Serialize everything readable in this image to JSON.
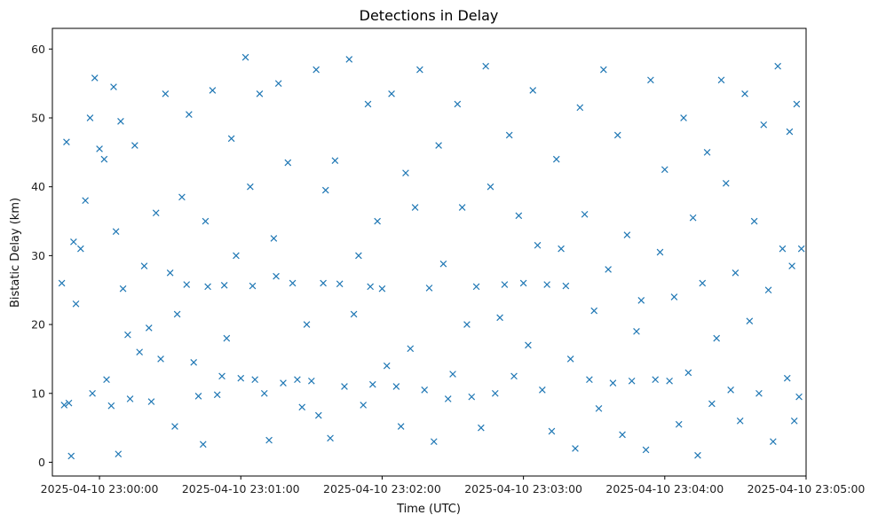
{
  "chart_data": {
    "type": "scatter",
    "title": "Detections in Delay",
    "xlabel": "Time (UTC)",
    "ylabel": "Bistatic Delay (km)",
    "marker": "x",
    "marker_color": "#1f77b4",
    "grid": false,
    "xlim": [
      "2025-04-10T22:59:40Z",
      "2025-04-10T23:05:00Z"
    ],
    "ylim": [
      -2,
      63
    ],
    "x_ticks": [
      "2025-04-10T23:00:00Z",
      "2025-04-10T23:01:00Z",
      "2025-04-10T23:02:00Z",
      "2025-04-10T23:03:00Z",
      "2025-04-10T23:04:00Z",
      "2025-04-10T23:05:00Z"
    ],
    "x_tick_labels": [
      "2025-04-10 23:00:00",
      "2025-04-10 23:01:00",
      "2025-04-10 23:02:00",
      "2025-04-10 23:03:00",
      "2025-04-10 23:04:00",
      "2025-04-10 23:05:00"
    ],
    "y_ticks": [
      0,
      10,
      20,
      30,
      40,
      50,
      60
    ],
    "y_tick_labels": [
      "0",
      "10",
      "20",
      "30",
      "40",
      "50",
      "60"
    ],
    "series": [
      {
        "points": [
          [
            "2025-04-10T22:59:44Z",
            26
          ],
          [
            "2025-04-10T22:59:45Z",
            8.3
          ],
          [
            "2025-04-10T22:59:46Z",
            46.5
          ],
          [
            "2025-04-10T22:59:47Z",
            8.6
          ],
          [
            "2025-04-10T22:59:48Z",
            0.9
          ],
          [
            "2025-04-10T22:59:49Z",
            32
          ],
          [
            "2025-04-10T22:59:50Z",
            23
          ],
          [
            "2025-04-10T22:59:52Z",
            31
          ],
          [
            "2025-04-10T22:59:54Z",
            38
          ],
          [
            "2025-04-10T22:59:56Z",
            50
          ],
          [
            "2025-04-10T22:59:57Z",
            10
          ],
          [
            "2025-04-10T22:59:58Z",
            55.8
          ],
          [
            "2025-04-10T23:00:00Z",
            45.5
          ],
          [
            "2025-04-10T23:00:02Z",
            44
          ],
          [
            "2025-04-10T23:00:03Z",
            12
          ],
          [
            "2025-04-10T23:00:05Z",
            8.2
          ],
          [
            "2025-04-10T23:00:06Z",
            54.5
          ],
          [
            "2025-04-10T23:00:07Z",
            33.5
          ],
          [
            "2025-04-10T23:00:08Z",
            1.2
          ],
          [
            "2025-04-10T23:00:09Z",
            49.5
          ],
          [
            "2025-04-10T23:00:10Z",
            25.2
          ],
          [
            "2025-04-10T23:00:12Z",
            18.5
          ],
          [
            "2025-04-10T23:00:13Z",
            9.2
          ],
          [
            "2025-04-10T23:00:15Z",
            46
          ],
          [
            "2025-04-10T23:00:17Z",
            16
          ],
          [
            "2025-04-10T23:00:19Z",
            28.5
          ],
          [
            "2025-04-10T23:00:21Z",
            19.5
          ],
          [
            "2025-04-10T23:00:22Z",
            8.8
          ],
          [
            "2025-04-10T23:00:24Z",
            36.2
          ],
          [
            "2025-04-10T23:00:26Z",
            15
          ],
          [
            "2025-04-10T23:00:28Z",
            53.5
          ],
          [
            "2025-04-10T23:00:30Z",
            27.5
          ],
          [
            "2025-04-10T23:00:32Z",
            5.2
          ],
          [
            "2025-04-10T23:00:33Z",
            21.5
          ],
          [
            "2025-04-10T23:00:35Z",
            38.5
          ],
          [
            "2025-04-10T23:00:37Z",
            25.8
          ],
          [
            "2025-04-10T23:00:38Z",
            50.5
          ],
          [
            "2025-04-10T23:00:40Z",
            14.5
          ],
          [
            "2025-04-10T23:00:42Z",
            9.6
          ],
          [
            "2025-04-10T23:00:44Z",
            2.6
          ],
          [
            "2025-04-10T23:00:45Z",
            35
          ],
          [
            "2025-04-10T23:00:46Z",
            25.5
          ],
          [
            "2025-04-10T23:00:48Z",
            54
          ],
          [
            "2025-04-10T23:00:50Z",
            9.8
          ],
          [
            "2025-04-10T23:00:52Z",
            12.5
          ],
          [
            "2025-04-10T23:00:53Z",
            25.7
          ],
          [
            "2025-04-10T23:00:54Z",
            18
          ],
          [
            "2025-04-10T23:00:56Z",
            47
          ],
          [
            "2025-04-10T23:00:58Z",
            30
          ],
          [
            "2025-04-10T23:01:00Z",
            12.2
          ],
          [
            "2025-04-10T23:01:02Z",
            58.8
          ],
          [
            "2025-04-10T23:01:04Z",
            40
          ],
          [
            "2025-04-10T23:01:05Z",
            25.6
          ],
          [
            "2025-04-10T23:01:06Z",
            12
          ],
          [
            "2025-04-10T23:01:08Z",
            53.5
          ],
          [
            "2025-04-10T23:01:10Z",
            10
          ],
          [
            "2025-04-10T23:01:12Z",
            3.2
          ],
          [
            "2025-04-10T23:01:14Z",
            32.5
          ],
          [
            "2025-04-10T23:01:15Z",
            27
          ],
          [
            "2025-04-10T23:01:16Z",
            55
          ],
          [
            "2025-04-10T23:01:18Z",
            11.5
          ],
          [
            "2025-04-10T23:01:20Z",
            43.5
          ],
          [
            "2025-04-10T23:01:22Z",
            26
          ],
          [
            "2025-04-10T23:01:24Z",
            12
          ],
          [
            "2025-04-10T23:01:26Z",
            8
          ],
          [
            "2025-04-10T23:01:28Z",
            20
          ],
          [
            "2025-04-10T23:01:30Z",
            11.8
          ],
          [
            "2025-04-10T23:01:32Z",
            57
          ],
          [
            "2025-04-10T23:01:33Z",
            6.8
          ],
          [
            "2025-04-10T23:01:35Z",
            26
          ],
          [
            "2025-04-10T23:01:36Z",
            39.5
          ],
          [
            "2025-04-10T23:01:38Z",
            3.5
          ],
          [
            "2025-04-10T23:01:40Z",
            43.8
          ],
          [
            "2025-04-10T23:01:42Z",
            25.9
          ],
          [
            "2025-04-10T23:01:44Z",
            11
          ],
          [
            "2025-04-10T23:01:46Z",
            58.5
          ],
          [
            "2025-04-10T23:01:48Z",
            21.5
          ],
          [
            "2025-04-10T23:01:50Z",
            30
          ],
          [
            "2025-04-10T23:01:52Z",
            8.3
          ],
          [
            "2025-04-10T23:01:54Z",
            52
          ],
          [
            "2025-04-10T23:01:55Z",
            25.5
          ],
          [
            "2025-04-10T23:01:56Z",
            11.3
          ],
          [
            "2025-04-10T23:01:58Z",
            35
          ],
          [
            "2025-04-10T23:02:00Z",
            25.2
          ],
          [
            "2025-04-10T23:02:02Z",
            14
          ],
          [
            "2025-04-10T23:02:04Z",
            53.5
          ],
          [
            "2025-04-10T23:02:06Z",
            11
          ],
          [
            "2025-04-10T23:02:08Z",
            5.2
          ],
          [
            "2025-04-10T23:02:10Z",
            42
          ],
          [
            "2025-04-10T23:02:12Z",
            16.5
          ],
          [
            "2025-04-10T23:02:14Z",
            37
          ],
          [
            "2025-04-10T23:02:16Z",
            57
          ],
          [
            "2025-04-10T23:02:18Z",
            10.5
          ],
          [
            "2025-04-10T23:02:20Z",
            25.3
          ],
          [
            "2025-04-10T23:02:22Z",
            3
          ],
          [
            "2025-04-10T23:02:24Z",
            46
          ],
          [
            "2025-04-10T23:02:26Z",
            28.8
          ],
          [
            "2025-04-10T23:02:28Z",
            9.2
          ],
          [
            "2025-04-10T23:02:30Z",
            12.8
          ],
          [
            "2025-04-10T23:02:32Z",
            52
          ],
          [
            "2025-04-10T23:02:34Z",
            37
          ],
          [
            "2025-04-10T23:02:36Z",
            20
          ],
          [
            "2025-04-10T23:02:38Z",
            9.5
          ],
          [
            "2025-04-10T23:02:40Z",
            25.5
          ],
          [
            "2025-04-10T23:02:42Z",
            5
          ],
          [
            "2025-04-10T23:02:44Z",
            57.5
          ],
          [
            "2025-04-10T23:02:46Z",
            40
          ],
          [
            "2025-04-10T23:02:48Z",
            10
          ],
          [
            "2025-04-10T23:02:50Z",
            21
          ],
          [
            "2025-04-10T23:02:52Z",
            25.8
          ],
          [
            "2025-04-10T23:02:54Z",
            47.5
          ],
          [
            "2025-04-10T23:02:56Z",
            12.5
          ],
          [
            "2025-04-10T23:02:58Z",
            35.8
          ],
          [
            "2025-04-10T23:03:00Z",
            26
          ],
          [
            "2025-04-10T23:03:02Z",
            17
          ],
          [
            "2025-04-10T23:03:04Z",
            54
          ],
          [
            "2025-04-10T23:03:06Z",
            31.5
          ],
          [
            "2025-04-10T23:03:08Z",
            10.5
          ],
          [
            "2025-04-10T23:03:10Z",
            25.8
          ],
          [
            "2025-04-10T23:03:12Z",
            4.5
          ],
          [
            "2025-04-10T23:03:14Z",
            44
          ],
          [
            "2025-04-10T23:03:16Z",
            31
          ],
          [
            "2025-04-10T23:03:18Z",
            25.6
          ],
          [
            "2025-04-10T23:03:20Z",
            15
          ],
          [
            "2025-04-10T23:03:22Z",
            2
          ],
          [
            "2025-04-10T23:03:24Z",
            51.5
          ],
          [
            "2025-04-10T23:03:26Z",
            36
          ],
          [
            "2025-04-10T23:03:28Z",
            12
          ],
          [
            "2025-04-10T23:03:30Z",
            22
          ],
          [
            "2025-04-10T23:03:32Z",
            7.8
          ],
          [
            "2025-04-10T23:03:34Z",
            57
          ],
          [
            "2025-04-10T23:03:36Z",
            28
          ],
          [
            "2025-04-10T23:03:38Z",
            11.5
          ],
          [
            "2025-04-10T23:03:40Z",
            47.5
          ],
          [
            "2025-04-10T23:03:42Z",
            4
          ],
          [
            "2025-04-10T23:03:44Z",
            33
          ],
          [
            "2025-04-10T23:03:46Z",
            11.8
          ],
          [
            "2025-04-10T23:03:48Z",
            19
          ],
          [
            "2025-04-10T23:03:50Z",
            23.5
          ],
          [
            "2025-04-10T23:03:52Z",
            1.8
          ],
          [
            "2025-04-10T23:03:54Z",
            55.5
          ],
          [
            "2025-04-10T23:03:56Z",
            12
          ],
          [
            "2025-04-10T23:03:58Z",
            30.5
          ],
          [
            "2025-04-10T23:04:00Z",
            42.5
          ],
          [
            "2025-04-10T23:04:02Z",
            11.8
          ],
          [
            "2025-04-10T23:04:04Z",
            24
          ],
          [
            "2025-04-10T23:04:06Z",
            5.5
          ],
          [
            "2025-04-10T23:04:08Z",
            50
          ],
          [
            "2025-04-10T23:04:10Z",
            13
          ],
          [
            "2025-04-10T23:04:12Z",
            35.5
          ],
          [
            "2025-04-10T23:04:14Z",
            1
          ],
          [
            "2025-04-10T23:04:16Z",
            26
          ],
          [
            "2025-04-10T23:04:18Z",
            45
          ],
          [
            "2025-04-10T23:04:20Z",
            8.5
          ],
          [
            "2025-04-10T23:04:22Z",
            18
          ],
          [
            "2025-04-10T23:04:24Z",
            55.5
          ],
          [
            "2025-04-10T23:04:26Z",
            40.5
          ],
          [
            "2025-04-10T23:04:28Z",
            10.5
          ],
          [
            "2025-04-10T23:04:30Z",
            27.5
          ],
          [
            "2025-04-10T23:04:32Z",
            6
          ],
          [
            "2025-04-10T23:04:34Z",
            53.5
          ],
          [
            "2025-04-10T23:04:36Z",
            20.5
          ],
          [
            "2025-04-10T23:04:38Z",
            35
          ],
          [
            "2025-04-10T23:04:40Z",
            10
          ],
          [
            "2025-04-10T23:04:42Z",
            49
          ],
          [
            "2025-04-10T23:04:44Z",
            25
          ],
          [
            "2025-04-10T23:04:46Z",
            3
          ],
          [
            "2025-04-10T23:04:48Z",
            57.5
          ],
          [
            "2025-04-10T23:04:50Z",
            31
          ],
          [
            "2025-04-10T23:04:52Z",
            12.2
          ],
          [
            "2025-04-10T23:04:53Z",
            48
          ],
          [
            "2025-04-10T23:04:54Z",
            28.5
          ],
          [
            "2025-04-10T23:04:55Z",
            6
          ],
          [
            "2025-04-10T23:04:56Z",
            52
          ],
          [
            "2025-04-10T23:04:57Z",
            9.5
          ],
          [
            "2025-04-10T23:04:58Z",
            31
          ]
        ]
      }
    ]
  }
}
